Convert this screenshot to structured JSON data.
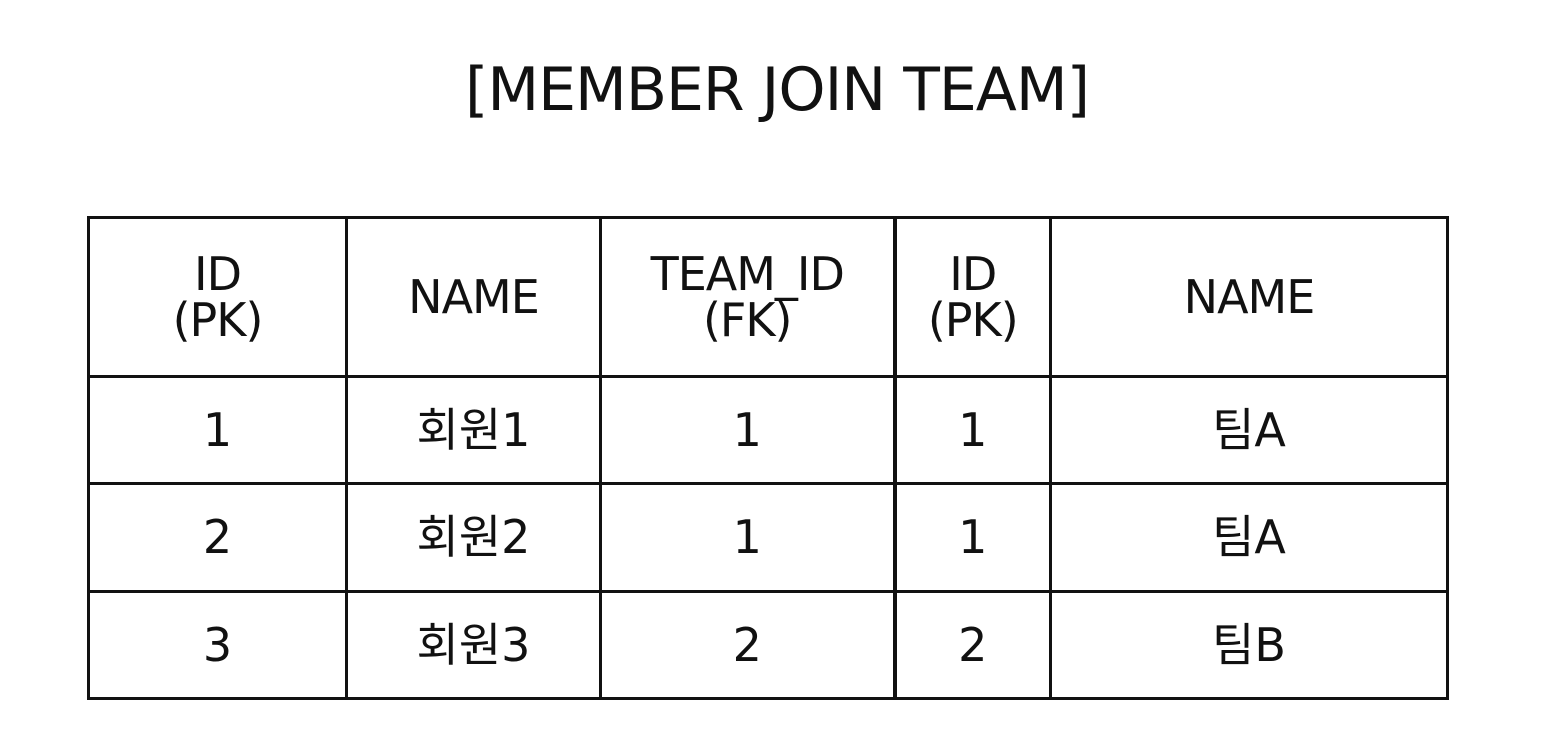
{
  "title": "[MEMBER JOIN TEAM]",
  "table": {
    "headers": [
      {
        "line1": "ID",
        "line2": "(PK)"
      },
      {
        "line1": "NAME",
        "line2": ""
      },
      {
        "line1": "TEAM_ID",
        "line2": "(FK)"
      },
      {
        "line1": "ID",
        "line2": "(PK)"
      },
      {
        "line1": "NAME",
        "line2": ""
      }
    ],
    "rows": [
      [
        "1",
        "회원1",
        "1",
        "1",
        "팀A"
      ],
      [
        "2",
        "회원2",
        "1",
        "1",
        "팀A"
      ],
      [
        "3",
        "회원3",
        "2",
        "2",
        "팀B"
      ]
    ]
  }
}
